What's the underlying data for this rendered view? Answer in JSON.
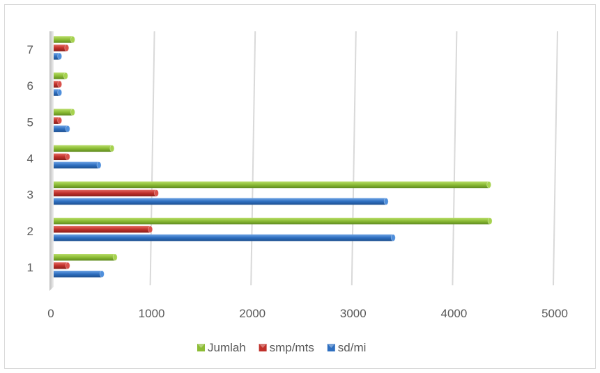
{
  "chart_data": {
    "type": "bar",
    "orientation": "horizontal",
    "title": "",
    "xlabel": "",
    "ylabel": "",
    "categories": [
      "1",
      "2",
      "3",
      "4",
      "5",
      "6",
      "7"
    ],
    "xlim": [
      0,
      5000
    ],
    "x_ticks": [
      "0",
      "1000",
      "2000",
      "3000",
      "4000",
      "5000"
    ],
    "grid": "vertical",
    "legend_position": "bottom",
    "series": [
      {
        "name": "sd/mi",
        "color": "#2e6fc0",
        "values": [
          480,
          3370,
          3300,
          450,
          140,
          60,
          60
        ]
      },
      {
        "name": "smp/mts",
        "color": "#c0302a",
        "values": [
          140,
          960,
          1020,
          140,
          60,
          60,
          130
        ]
      },
      {
        "name": "Jumlah",
        "color": "#8cbc35",
        "values": [
          610,
          4330,
          4320,
          580,
          190,
          120,
          190
        ]
      }
    ],
    "legend_order": [
      "Jumlah",
      "smp/mts",
      "sd/mi"
    ]
  }
}
